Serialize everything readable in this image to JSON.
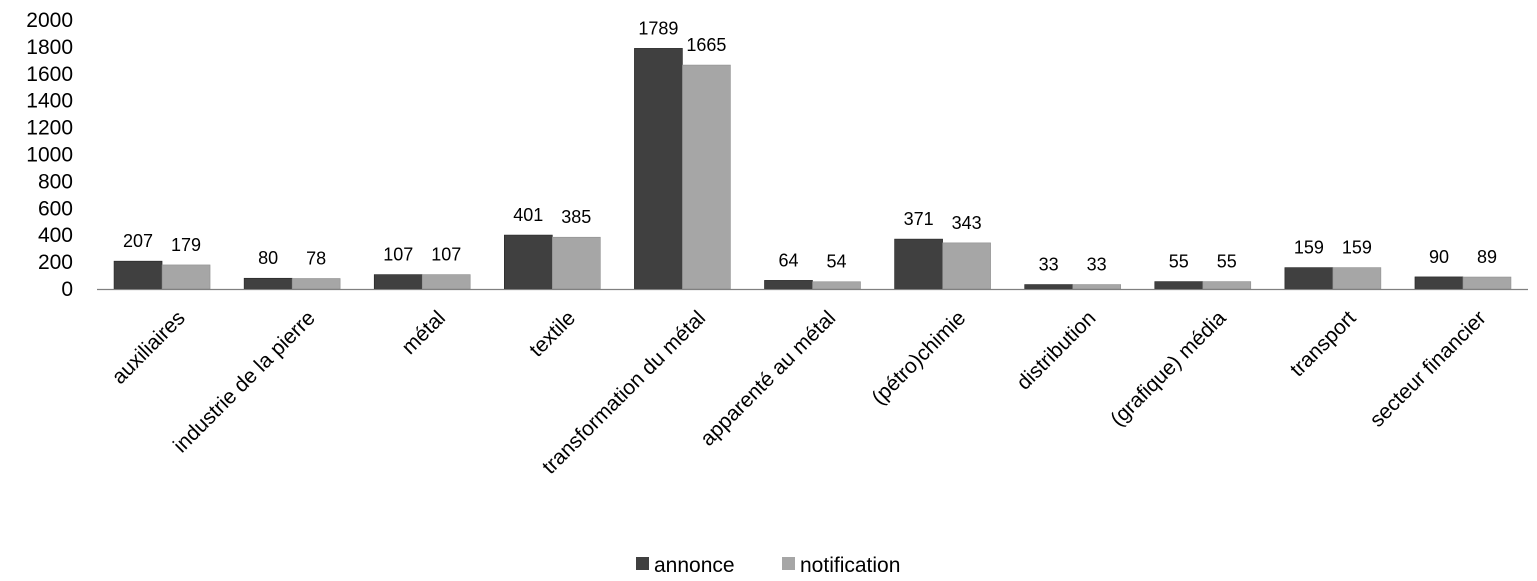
{
  "chart_data": {
    "type": "bar",
    "categories": [
      "auxiliaires",
      "industrie de la pierre",
      "métal",
      "textile",
      "transformation du métal",
      "apparenté au métal",
      "(pétro)chimie",
      "distribution",
      "(grafique) média",
      "transport",
      "secteur financier"
    ],
    "series": [
      {
        "name": "annonce",
        "color": "#404040",
        "values": [
          207,
          80,
          107,
          401,
          1789,
          64,
          371,
          33,
          55,
          159,
          90
        ]
      },
      {
        "name": "notification",
        "color": "#a6a6a6",
        "values": [
          179,
          78,
          107,
          385,
          1665,
          54,
          343,
          33,
          55,
          159,
          89
        ]
      }
    ],
    "yticks": [
      "0",
      "200",
      "400",
      "600",
      "800",
      "1000",
      "1200",
      "1400",
      "1600",
      "1800",
      "2000"
    ],
    "ylim": [
      0,
      2000
    ],
    "title": "",
    "xlabel": "",
    "ylabel": "",
    "grid": false,
    "legend_position": "bottom"
  }
}
